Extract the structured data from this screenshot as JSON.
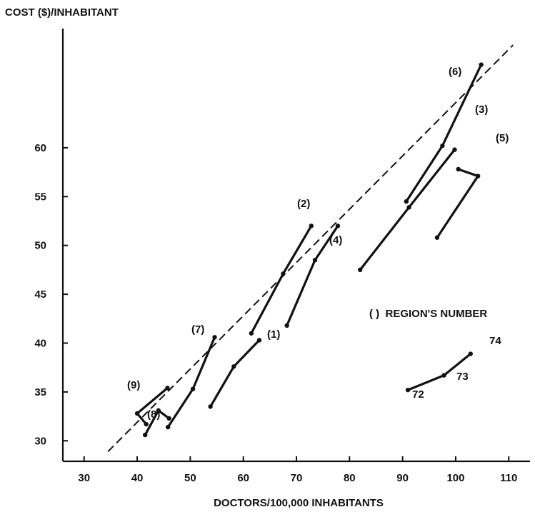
{
  "chart_data": {
    "type": "line",
    "title": "",
    "ylabel": "COST ($)/INHABITANT",
    "xlabel": "DOCTORS/100,000 INHABITANTS",
    "xlim": [
      26,
      114
    ],
    "ylim": [
      27.9,
      72.2
    ],
    "x_ticks": [
      30,
      40,
      50,
      60,
      70,
      80,
      90,
      100,
      110
    ],
    "y_ticks": [
      30,
      35,
      40,
      45,
      50,
      55,
      60
    ],
    "grid": false,
    "legend_note": "( )  REGION'S NUMBER",
    "series": [
      {
        "label": "(1)",
        "points": [
          [
            53.8,
            33.5
          ],
          [
            58.2,
            37.6
          ],
          [
            63.0,
            40.3
          ]
        ]
      },
      {
        "label": "(2)",
        "points": [
          [
            61.5,
            41.0
          ],
          [
            67.5,
            47.1
          ],
          [
            72.8,
            52.0
          ]
        ]
      },
      {
        "label": "(3)",
        "points": [
          [
            82.0,
            47.5
          ],
          [
            91.2,
            53.9
          ],
          [
            99.8,
            59.8
          ]
        ]
      },
      {
        "label": "(4)",
        "points": [
          [
            68.2,
            41.8
          ],
          [
            73.5,
            48.5
          ],
          [
            77.8,
            52.0
          ]
        ]
      },
      {
        "label": "(5)",
        "points": [
          [
            96.5,
            50.8
          ],
          [
            104.2,
            57.1
          ],
          [
            100.5,
            57.8
          ]
        ]
      },
      {
        "label": "(6)",
        "points": [
          [
            90.7,
            54.5
          ],
          [
            97.5,
            60.2
          ],
          [
            104.8,
            68.5
          ]
        ]
      },
      {
        "label": "(7)",
        "points": [
          [
            45.8,
            31.4
          ],
          [
            50.5,
            35.3
          ],
          [
            54.6,
            40.6
          ]
        ]
      },
      {
        "label": "(8)",
        "points": [
          [
            41.5,
            30.6
          ],
          [
            44.0,
            33.1
          ],
          [
            46.0,
            32.3
          ]
        ]
      },
      {
        "label": "(9)",
        "points": [
          [
            41.7,
            31.7
          ],
          [
            40.0,
            32.8
          ],
          [
            45.7,
            35.4
          ]
        ]
      }
    ],
    "trend_line": {
      "style": "dashed",
      "points": [
        [
          34.5,
          28.9
        ],
        [
          110.8,
          70.5
        ]
      ]
    },
    "year_key": {
      "points": [
        [
          91.0,
          35.2
        ],
        [
          97.8,
          36.7
        ],
        [
          102.8,
          38.9
        ]
      ],
      "labels": [
        "72",
        "73",
        "74"
      ]
    }
  }
}
